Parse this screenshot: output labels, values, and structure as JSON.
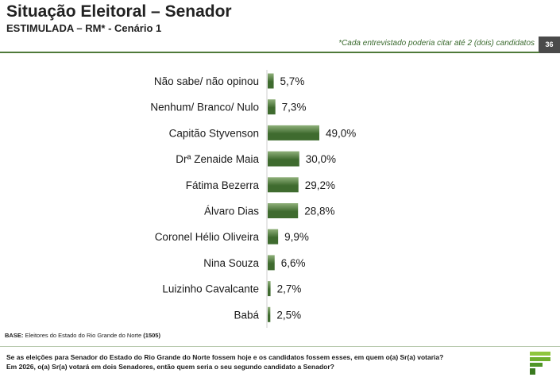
{
  "header": {
    "title": "Situação Eleitoral – Senador",
    "subtitle": "ESTIMULADA – RM* - Cenário 1",
    "note": "*Cada entrevistado poderia citar até 2 (dois) candidatos",
    "page_number": "36"
  },
  "footer": {
    "base_label": "BASE:",
    "base_text": "Eleitores do Estado do Rio Grande do Norte",
    "base_n": "(1505)",
    "question_line1": "Se as eleições para Senador do Estado do Rio Grande do Norte fossem hoje e os candidatos fossem esses, em quem o(a) Sr(a) votaria?",
    "question_line2": "Em 2026, o(a) Sr(a) votará em dois Senadores, então quem seria o seu segundo candidato a Senador?"
  },
  "colors": {
    "bar_dark": "#3f6b2f",
    "bar_light": "#8fb07a",
    "accent": "#4f7a3a"
  },
  "chart_data": {
    "type": "bar",
    "orientation": "horizontal",
    "categories": [
      "Não sabe/ não opinou",
      "Nenhum/ Branco/ Nulo",
      "Capitão Styvenson",
      "Drª Zenaide Maia",
      "Fátima Bezerra",
      "Álvaro Dias",
      "Coronel Hélio Oliveira",
      "Nina Souza",
      "Luizinho Cavalcante",
      "Babá"
    ],
    "values": [
      5.7,
      7.3,
      49.0,
      30.0,
      29.2,
      28.8,
      9.9,
      6.6,
      2.7,
      2.5
    ],
    "labels": [
      "5,7%",
      "7,3%",
      "49,0%",
      "30,0%",
      "29,2%",
      "28,8%",
      "9,9%",
      "6,6%",
      "2,7%",
      "2,5%"
    ],
    "xlim": [
      0,
      100
    ],
    "grid": false
  }
}
